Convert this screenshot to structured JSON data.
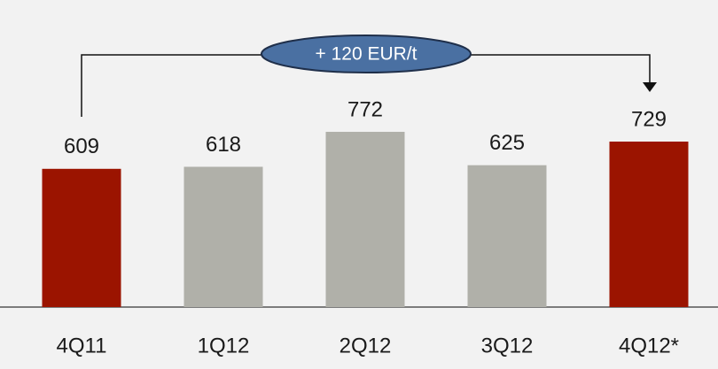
{
  "chart_data": {
    "type": "bar",
    "categories": [
      "4Q11",
      "1Q12",
      "2Q12",
      "3Q12",
      "4Q12*"
    ],
    "values": [
      609,
      618,
      772,
      625,
      729
    ],
    "colors": [
      "#9b1400",
      "#b0b0a9",
      "#b0b0a9",
      "#b0b0a9",
      "#9b1400"
    ],
    "annotation": "+ 120 EUR/t"
  }
}
